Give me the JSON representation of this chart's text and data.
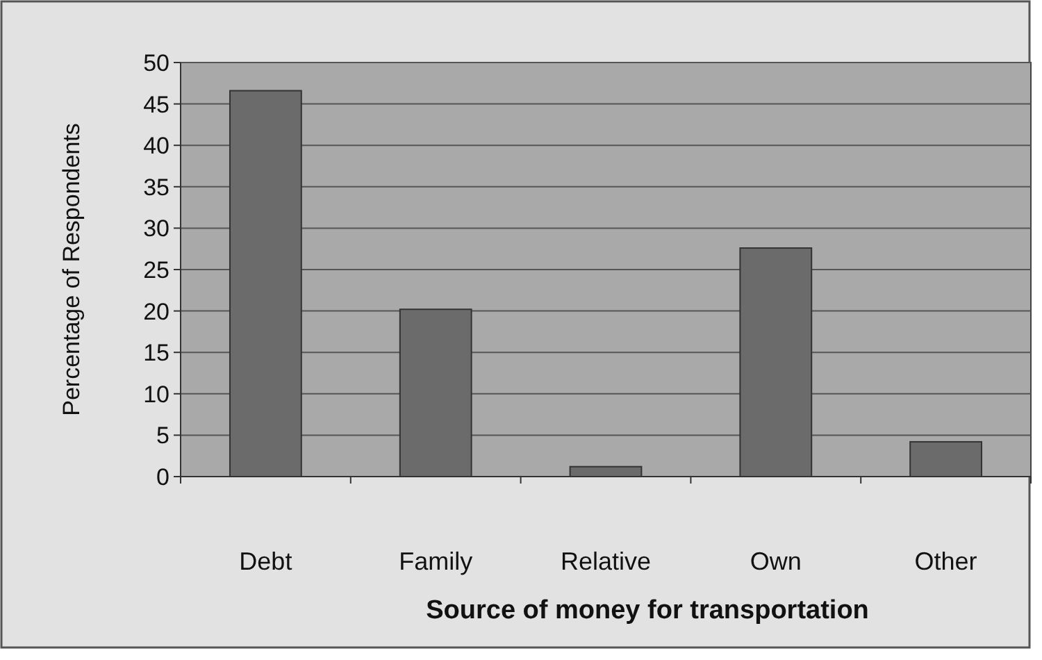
{
  "chart_data": {
    "type": "bar",
    "xlabel": "Source of money for transportation",
    "ylabel": "Percentage of Respondents",
    "categories": [
      "Debt",
      "Family",
      "Relative",
      "Own",
      "Other"
    ],
    "values": [
      46.6,
      20.2,
      1.2,
      27.6,
      4.2
    ],
    "color": "#6b6b6b",
    "ylim": [
      0,
      50
    ],
    "yticks": [
      0,
      5,
      10,
      15,
      20,
      25,
      30,
      35,
      40,
      45,
      50
    ],
    "grid": "y"
  }
}
